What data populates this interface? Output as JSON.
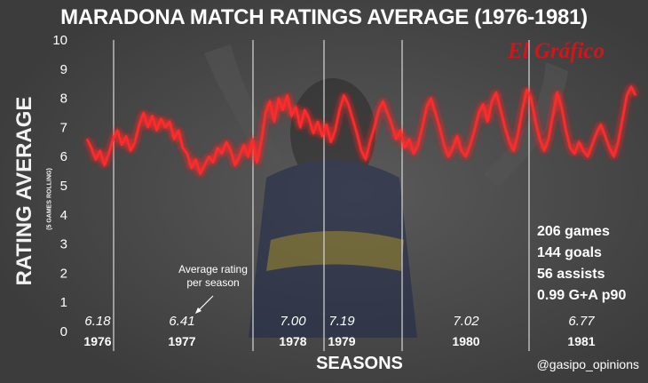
{
  "title": "MARADONA MATCH RATINGS AVERAGE (1976-1981)",
  "brand": "El Gráfico",
  "credit": "@gasipo_opinions",
  "annotation": {
    "line1": "Average rating",
    "line2": "per season"
  },
  "stats": [
    "206 games",
    "144 goals",
    "56 assists",
    "0.99 G+A p90"
  ],
  "colors": {
    "line": "#ff2a2a",
    "glow": "#ff0000",
    "background": "#474747",
    "text": "#ffffff",
    "brand": "#d0161b"
  },
  "chart_data": {
    "type": "line",
    "title": "MARADONA MATCH RATINGS AVERAGE (1976-1981)",
    "xlabel": "SEASONS",
    "ylabel": "RATING AVERAGE",
    "ylabel_sub": "(5 GAMES ROLLING)",
    "ylim": [
      0,
      10
    ],
    "yticks": [
      0,
      1,
      2,
      3,
      4,
      5,
      6,
      7,
      8,
      9,
      10
    ],
    "grid": "vertical season dividers",
    "seasons": [
      {
        "label": "1976",
        "average": "6.18"
      },
      {
        "label": "1977",
        "average": "6.41"
      },
      {
        "label": "1978",
        "average": "7.00"
      },
      {
        "label": "1979",
        "average": "7.19"
      },
      {
        "label": "1980",
        "average": "7.02"
      },
      {
        "label": "1981",
        "average": "6.77"
      }
    ],
    "series": [
      {
        "values": [
          6.6,
          6.3,
          5.9,
          6.2,
          5.7,
          6.1,
          6.6,
          6.9,
          6.4,
          6.7,
          6.2,
          6.5,
          7.1,
          7.5,
          7.0,
          7.4,
          6.9,
          7.3,
          7.0,
          7.2,
          6.6,
          6.9,
          6.3,
          6.1,
          5.6,
          5.9,
          5.4,
          5.7,
          6.0,
          5.8,
          6.3,
          6.1,
          6.5,
          6.2,
          5.7,
          6.0,
          6.4,
          6.0,
          6.6,
          5.8,
          6.5,
          7.5,
          7.9,
          7.2,
          8.0,
          7.6,
          8.1,
          7.4,
          7.7,
          7.0,
          7.6,
          7.3,
          6.8,
          7.2,
          6.7,
          7.1,
          6.5,
          6.9,
          7.6,
          8.1,
          7.8,
          7.3,
          6.8,
          6.2,
          5.9,
          6.5,
          7.0,
          7.6,
          7.9,
          7.5,
          7.1,
          6.6,
          6.9,
          6.3,
          6.6,
          6.1,
          6.4,
          7.0,
          7.7,
          8.0,
          7.5,
          7.0,
          6.4,
          6.0,
          6.3,
          6.7,
          6.2,
          6.0,
          6.4,
          6.9,
          7.5,
          7.8,
          7.2,
          7.9,
          8.2,
          7.6,
          7.0,
          6.5,
          6.2,
          6.8,
          7.6,
          8.3,
          8.0,
          7.2,
          6.6,
          6.2,
          6.6,
          7.4,
          8.2,
          7.7,
          6.9,
          6.3,
          6.1,
          6.5,
          6.2,
          6.0,
          6.4,
          6.8,
          7.1,
          6.7,
          6.3,
          6.0,
          6.5,
          7.3,
          8.1,
          8.4,
          8.1
        ]
      }
    ]
  }
}
